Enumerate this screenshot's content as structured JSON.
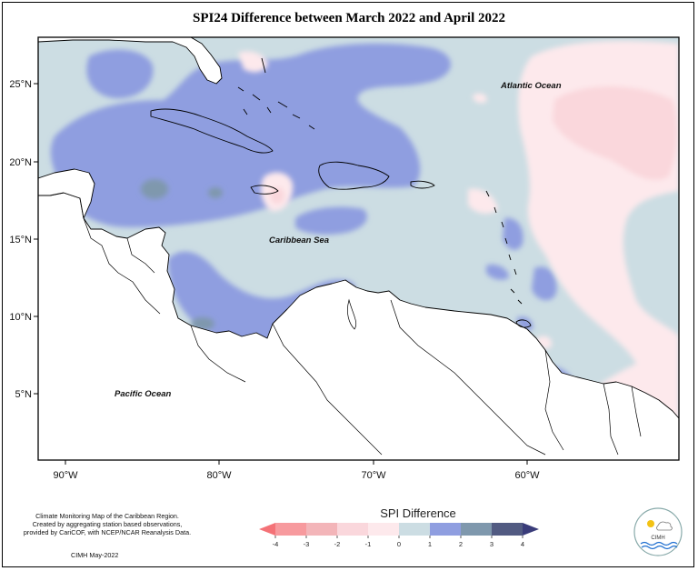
{
  "title": "SPI24 Difference between March 2022 and April 2022",
  "map": {
    "lon_ticks": [
      "90°W",
      "80°W",
      "70°W",
      "60°W"
    ],
    "lat_ticks": [
      "25°N",
      "20°N",
      "15°N",
      "10°N",
      "5°N"
    ],
    "labels": {
      "atlantic": "Atlantic Ocean",
      "caribbean": "Caribbean Sea",
      "pacific": "Pacific Ocean"
    }
  },
  "legend": {
    "title": "SPI Difference",
    "ticks": [
      "-4",
      "-3",
      "-2",
      "-1",
      "0",
      "1",
      "2",
      "3",
      "4"
    ],
    "colors": [
      "#f79a9e",
      "#f3b5b9",
      "#fad7dc",
      "#fde9ec",
      "#ccdde3",
      "#8f9ee0",
      "#7f98ad",
      "#525b82"
    ],
    "arrow_low_color": "#f47277",
    "arrow_high_color": "#3a3c7a"
  },
  "credit": {
    "lines": [
      "Climate Monitoring Map of the Caribbean Region.",
      "Created by aggregating station based observations,",
      "provided by CariCOF, with NCEP/NCAR Reanalysis Data."
    ],
    "date": "CIMH May-2022"
  },
  "logo": {
    "text": "CIMH",
    "icon": "cimh-sun-cloud-wave-logo"
  }
}
